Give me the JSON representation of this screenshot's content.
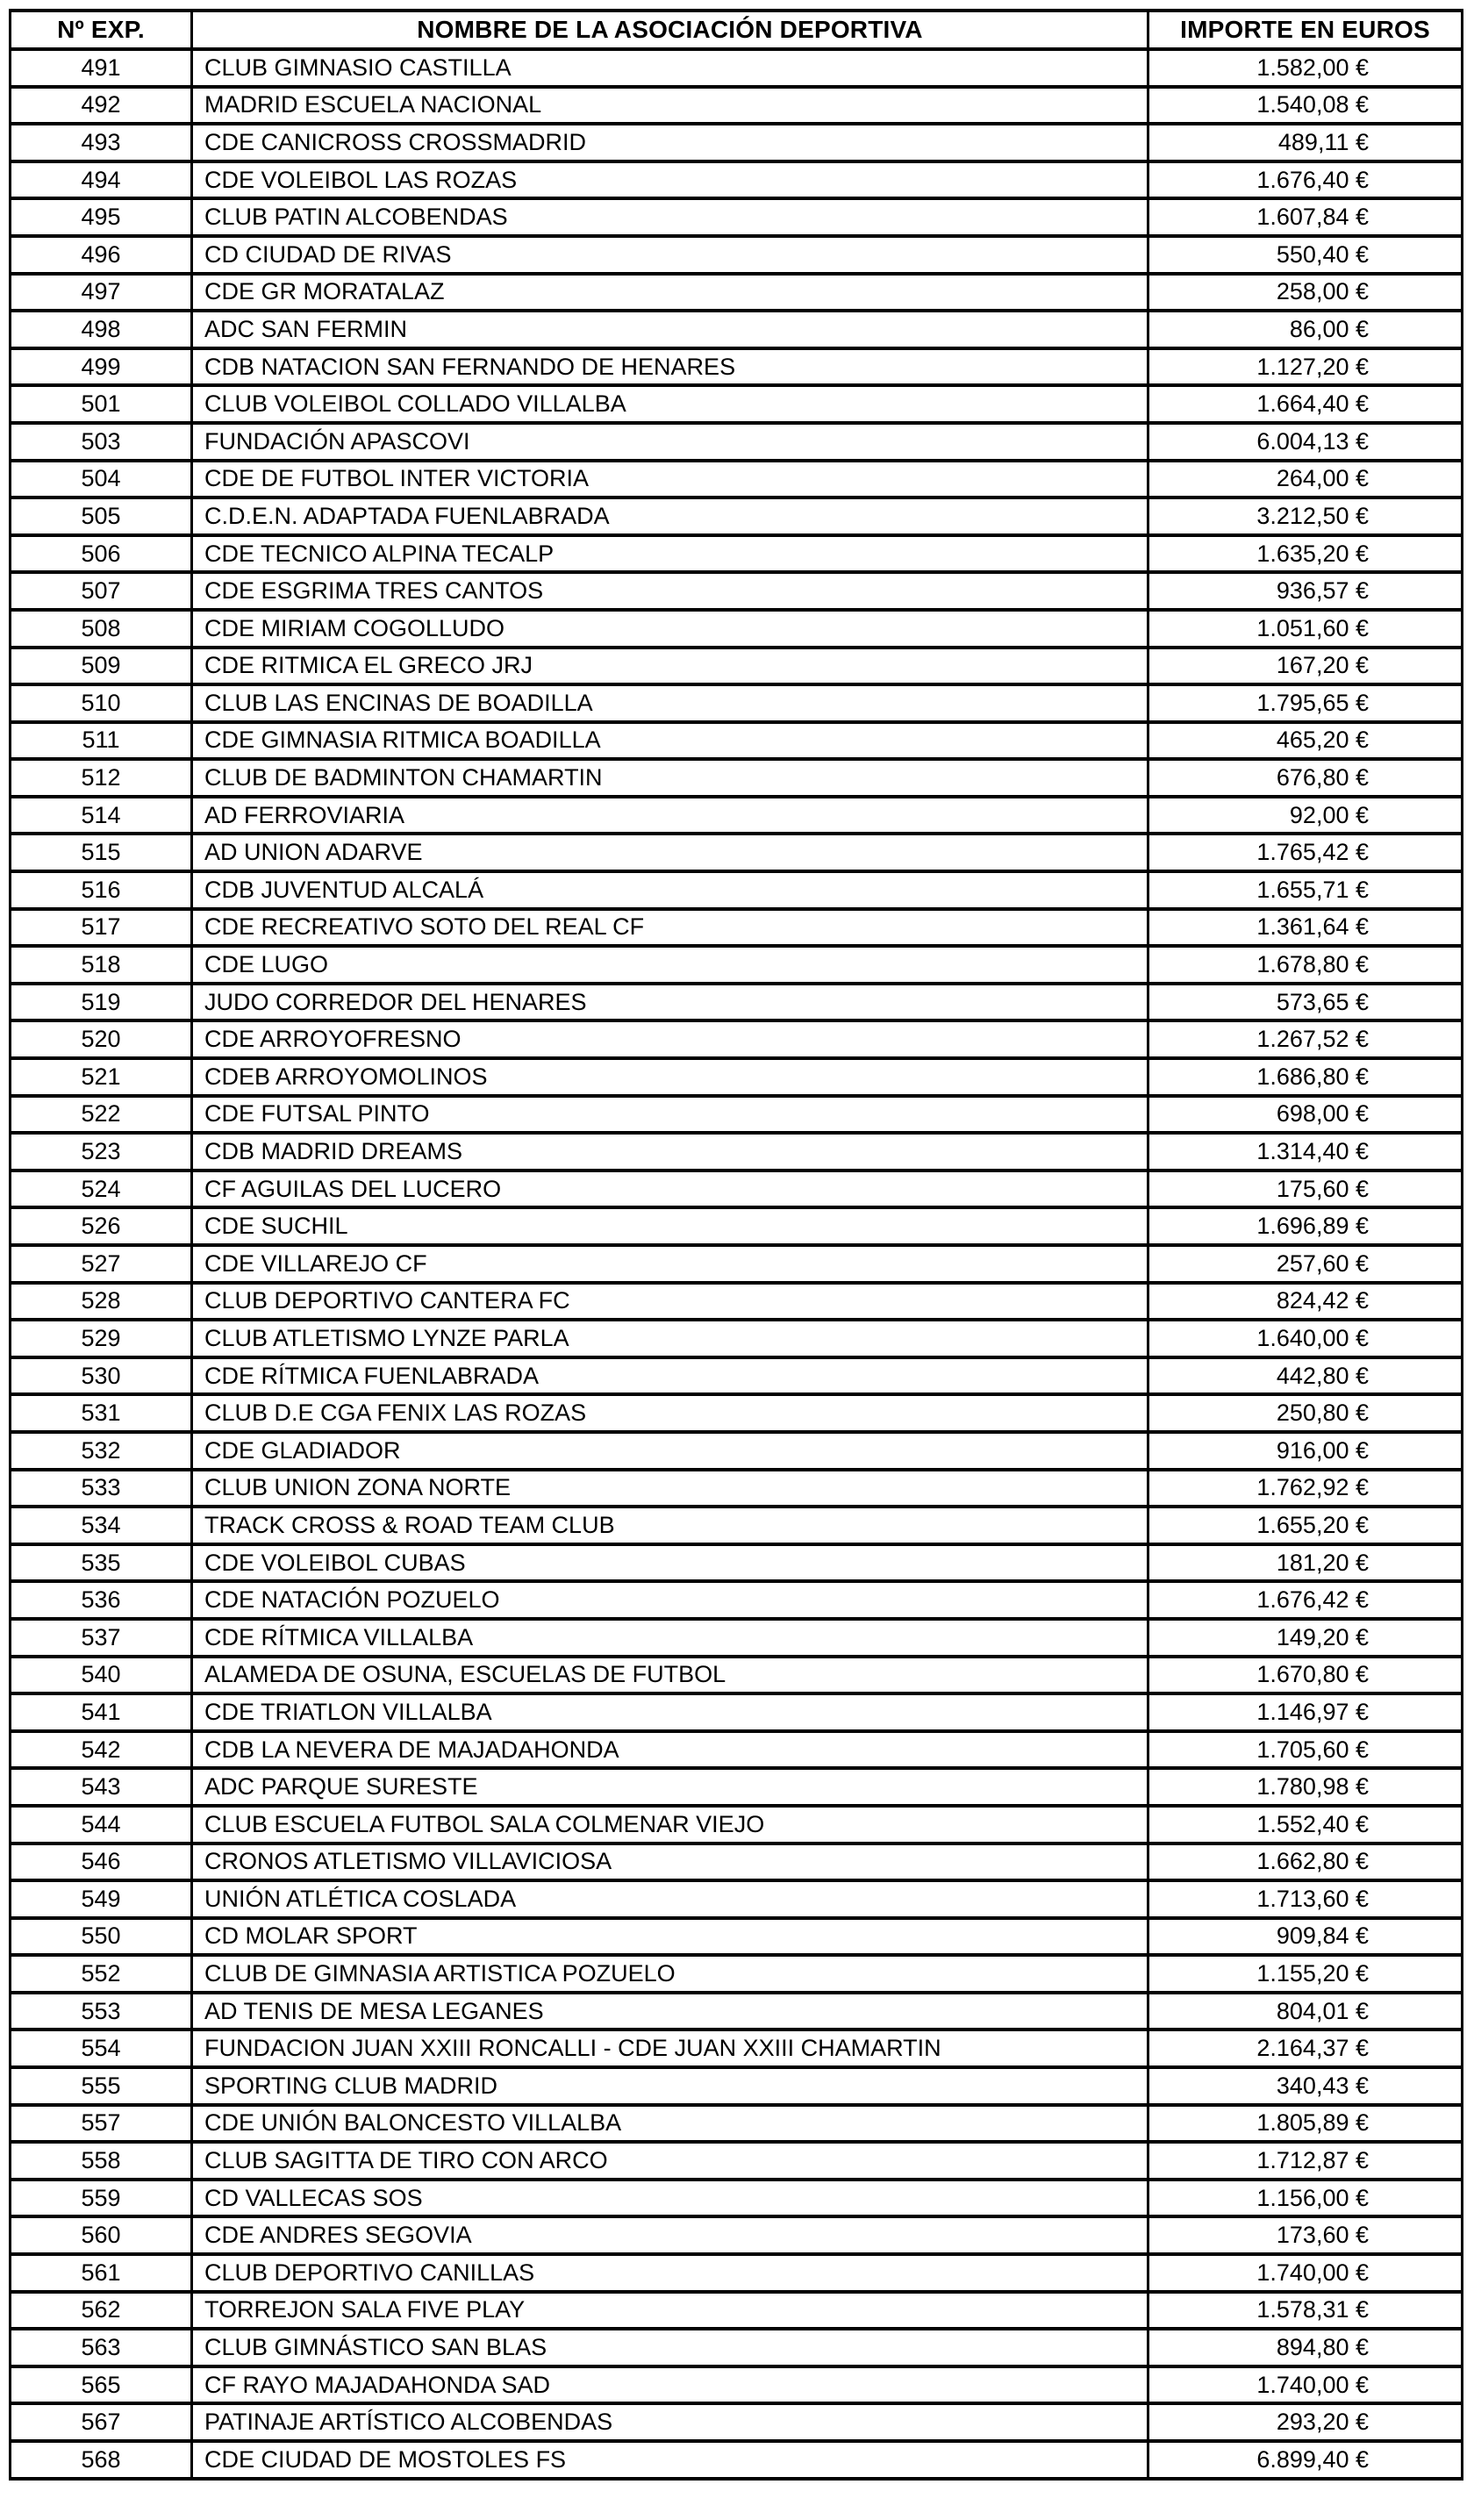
{
  "table": {
    "columns": [
      "Nº EXP.",
      "NOMBRE DE LA ASOCIACIÓN DEPORTIVA",
      "IMPORTE EN EUROS"
    ],
    "rows": [
      {
        "exp": "491",
        "nombre": "CLUB GIMNASIO CASTILLA",
        "importe": "1.582,00 €"
      },
      {
        "exp": "492",
        "nombre": "MADRID ESCUELA NACIONAL",
        "importe": "1.540,08 €"
      },
      {
        "exp": "493",
        "nombre": "CDE CANICROSS CROSSMADRID",
        "importe": "489,11 €"
      },
      {
        "exp": "494",
        "nombre": "CDE VOLEIBOL LAS ROZAS",
        "importe": "1.676,40 €"
      },
      {
        "exp": "495",
        "nombre": "CLUB PATIN ALCOBENDAS",
        "importe": "1.607,84 €"
      },
      {
        "exp": "496",
        "nombre": "CD CIUDAD DE RIVAS",
        "importe": "550,40 €"
      },
      {
        "exp": "497",
        "nombre": "CDE GR MORATALAZ",
        "importe": "258,00 €"
      },
      {
        "exp": "498",
        "nombre": "ADC SAN FERMIN",
        "importe": "86,00 €"
      },
      {
        "exp": "499",
        "nombre": "CDB NATACION SAN FERNANDO DE HENARES",
        "importe": "1.127,20 €"
      },
      {
        "exp": "501",
        "nombre": "CLUB VOLEIBOL COLLADO VILLALBA",
        "importe": "1.664,40 €"
      },
      {
        "exp": "503",
        "nombre": "FUNDACIÓN APASCOVI",
        "importe": "6.004,13 €"
      },
      {
        "exp": "504",
        "nombre": "CDE DE FUTBOL INTER VICTORIA",
        "importe": "264,00 €"
      },
      {
        "exp": "505",
        "nombre": "C.D.E.N. ADAPTADA FUENLABRADA",
        "importe": "3.212,50 €"
      },
      {
        "exp": "506",
        "nombre": "CDE TECNICO ALPINA TECALP",
        "importe": "1.635,20 €"
      },
      {
        "exp": "507",
        "nombre": "CDE ESGRIMA TRES CANTOS",
        "importe": "936,57 €"
      },
      {
        "exp": "508",
        "nombre": "CDE MIRIAM COGOLLUDO",
        "importe": "1.051,60 €"
      },
      {
        "exp": "509",
        "nombre": "CDE RITMICA EL GRECO JRJ",
        "importe": "167,20 €"
      },
      {
        "exp": "510",
        "nombre": "CLUB LAS ENCINAS DE BOADILLA",
        "importe": "1.795,65 €"
      },
      {
        "exp": "511",
        "nombre": "CDE GIMNASIA RITMICA BOADILLA",
        "importe": "465,20 €"
      },
      {
        "exp": "512",
        "nombre": "CLUB DE BADMINTON CHAMARTIN",
        "importe": "676,80 €"
      },
      {
        "exp": "514",
        "nombre": "AD FERROVIARIA",
        "importe": "92,00 €"
      },
      {
        "exp": "515",
        "nombre": "AD UNION ADARVE",
        "importe": "1.765,42 €"
      },
      {
        "exp": "516",
        "nombre": "CDB JUVENTUD ALCALÁ",
        "importe": "1.655,71 €"
      },
      {
        "exp": "517",
        "nombre": "CDE RECREATIVO SOTO DEL REAL CF",
        "importe": "1.361,64 €"
      },
      {
        "exp": "518",
        "nombre": "CDE LUGO",
        "importe": "1.678,80 €"
      },
      {
        "exp": "519",
        "nombre": "JUDO CORREDOR DEL HENARES",
        "importe": "573,65 €"
      },
      {
        "exp": "520",
        "nombre": "CDE ARROYOFRESNO",
        "importe": "1.267,52 €"
      },
      {
        "exp": "521",
        "nombre": "CDEB ARROYOMOLINOS",
        "importe": "1.686,80 €"
      },
      {
        "exp": "522",
        "nombre": "CDE FUTSAL PINTO",
        "importe": "698,00 €"
      },
      {
        "exp": "523",
        "nombre": "CDB MADRID DREAMS",
        "importe": "1.314,40 €"
      },
      {
        "exp": "524",
        "nombre": "CF AGUILAS DEL LUCERO",
        "importe": "175,60 €"
      },
      {
        "exp": "526",
        "nombre": "CDE SUCHIL",
        "importe": "1.696,89 €"
      },
      {
        "exp": "527",
        "nombre": "CDE VILLAREJO CF",
        "importe": "257,60 €"
      },
      {
        "exp": "528",
        "nombre": "CLUB DEPORTIVO CANTERA FC",
        "importe": "824,42 €"
      },
      {
        "exp": "529",
        "nombre": "CLUB ATLETISMO LYNZE PARLA",
        "importe": "1.640,00 €"
      },
      {
        "exp": "530",
        "nombre": "CDE RÍTMICA FUENLABRADA",
        "importe": "442,80 €"
      },
      {
        "exp": "531",
        "nombre": "CLUB D.E CGA FENIX LAS ROZAS",
        "importe": "250,80 €"
      },
      {
        "exp": "532",
        "nombre": "CDE GLADIADOR",
        "importe": "916,00 €"
      },
      {
        "exp": "533",
        "nombre": "CLUB UNION ZONA NORTE",
        "importe": "1.762,92 €"
      },
      {
        "exp": "534",
        "nombre": "TRACK CROSS & ROAD TEAM CLUB",
        "importe": "1.655,20 €"
      },
      {
        "exp": "535",
        "nombre": "CDE VOLEIBOL CUBAS",
        "importe": "181,20 €"
      },
      {
        "exp": "536",
        "nombre": "CDE NATACIÓN POZUELO",
        "importe": "1.676,42 €"
      },
      {
        "exp": "537",
        "nombre": "CDE RÍTMICA VILLALBA",
        "importe": "149,20 €"
      },
      {
        "exp": "540",
        "nombre": "ALAMEDA DE OSUNA, ESCUELAS DE FUTBOL",
        "importe": "1.670,80 €"
      },
      {
        "exp": "541",
        "nombre": "CDE TRIATLON VILLALBA",
        "importe": "1.146,97 €"
      },
      {
        "exp": "542",
        "nombre": "CDB LA NEVERA DE MAJADAHONDA",
        "importe": "1.705,60 €"
      },
      {
        "exp": "543",
        "nombre": "ADC PARQUE SURESTE",
        "importe": "1.780,98 €"
      },
      {
        "exp": "544",
        "nombre": "CLUB ESCUELA FUTBOL SALA COLMENAR VIEJO",
        "importe": "1.552,40 €"
      },
      {
        "exp": "546",
        "nombre": "CRONOS ATLETISMO VILLAVICIOSA",
        "importe": "1.662,80 €"
      },
      {
        "exp": "549",
        "nombre": "UNIÓN ATLÉTICA COSLADA",
        "importe": "1.713,60 €"
      },
      {
        "exp": "550",
        "nombre": "CD MOLAR SPORT",
        "importe": "909,84 €"
      },
      {
        "exp": "552",
        "nombre": "CLUB DE GIMNASIA ARTISTICA POZUELO",
        "importe": "1.155,20 €"
      },
      {
        "exp": "553",
        "nombre": "AD TENIS DE MESA LEGANES",
        "importe": "804,01 €"
      },
      {
        "exp": "554",
        "nombre": "FUNDACION JUAN XXIII RONCALLI - CDE JUAN XXIII CHAMARTIN",
        "importe": "2.164,37 €"
      },
      {
        "exp": "555",
        "nombre": "SPORTING CLUB MADRID",
        "importe": "340,43 €"
      },
      {
        "exp": "557",
        "nombre": "CDE UNIÓN BALONCESTO VILLALBA",
        "importe": "1.805,89 €"
      },
      {
        "exp": "558",
        "nombre": "CLUB SAGITTA DE TIRO CON ARCO",
        "importe": "1.712,87 €"
      },
      {
        "exp": "559",
        "nombre": "CD VALLECAS SOS",
        "importe": "1.156,00 €"
      },
      {
        "exp": "560",
        "nombre": "CDE ANDRES SEGOVIA",
        "importe": "173,60 €"
      },
      {
        "exp": "561",
        "nombre": "CLUB DEPORTIVO CANILLAS",
        "importe": "1.740,00 €"
      },
      {
        "exp": "562",
        "nombre": "TORREJON SALA FIVE PLAY",
        "importe": "1.578,31 €"
      },
      {
        "exp": "563",
        "nombre": "CLUB GIMNÁSTICO SAN BLAS",
        "importe": "894,80 €"
      },
      {
        "exp": "565",
        "nombre": "CF RAYO MAJADAHONDA SAD",
        "importe": "1.740,00 €"
      },
      {
        "exp": "567",
        "nombre": "PATINAJE ARTÍSTICO ALCOBENDAS",
        "importe": "293,20 €"
      },
      {
        "exp": "568",
        "nombre": "CDE CIUDAD DE MOSTOLES FS",
        "importe": "6.899,40 €"
      }
    ]
  }
}
